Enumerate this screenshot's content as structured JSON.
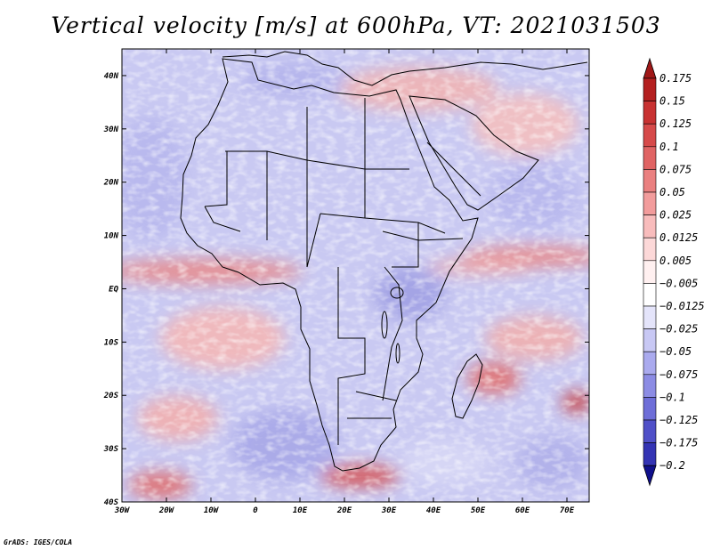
{
  "title": "Vertical velocity [m/s] at 600hPa, VT: 2021031503",
  "credit": "GrADS: IGES/COLA",
  "map": {
    "lon_range": [
      -30,
      75
    ],
    "lat_range": [
      -40,
      45
    ],
    "lon_ticks": [
      {
        "value": -30,
        "label": "30W"
      },
      {
        "value": -20,
        "label": "20W"
      },
      {
        "value": -10,
        "label": "10W"
      },
      {
        "value": 0,
        "label": "0"
      },
      {
        "value": 10,
        "label": "10E"
      },
      {
        "value": 20,
        "label": "20E"
      },
      {
        "value": 30,
        "label": "30E"
      },
      {
        "value": 40,
        "label": "40E"
      },
      {
        "value": 50,
        "label": "50E"
      },
      {
        "value": 60,
        "label": "60E"
      },
      {
        "value": 70,
        "label": "70E"
      }
    ],
    "lat_ticks": [
      {
        "value": 40,
        "label": "40N"
      },
      {
        "value": 30,
        "label": "30N"
      },
      {
        "value": 20,
        "label": "20N"
      },
      {
        "value": 10,
        "label": "10N"
      },
      {
        "value": 0,
        "label": "EQ"
      },
      {
        "value": -10,
        "label": "10S"
      },
      {
        "value": -20,
        "label": "20S"
      },
      {
        "value": -30,
        "label": "30S"
      },
      {
        "value": -40,
        "label": "40S"
      }
    ]
  },
  "colorbar": {
    "levels": [
      {
        "label": "0.175",
        "color": "#b42020"
      },
      {
        "label": "0.15",
        "color": "#c83232"
      },
      {
        "label": "0.125",
        "color": "#d64a4a"
      },
      {
        "label": "0.1",
        "color": "#e06464"
      },
      {
        "label": "0.075",
        "color": "#ea8080"
      },
      {
        "label": "0.05",
        "color": "#f29c9c"
      },
      {
        "label": "0.025",
        "color": "#f8bcbc"
      },
      {
        "label": "0.0125",
        "color": "#fcd8d8"
      },
      {
        "label": "0.005",
        "color": "#fff0f0"
      },
      {
        "label": "−0.005",
        "color": "#ffffff"
      },
      {
        "label": "−0.0125",
        "color": "#e4e4fa"
      },
      {
        "label": "−0.025",
        "color": "#c8c8f4"
      },
      {
        "label": "−0.05",
        "color": "#aaaaee"
      },
      {
        "label": "−0.075",
        "color": "#8c8ce4"
      },
      {
        "label": "−0.1",
        "color": "#6e6ed8"
      },
      {
        "label": "−0.125",
        "color": "#5050c8"
      },
      {
        "label": "−0.175",
        "color": "#3434b4"
      },
      {
        "label": "−0.2",
        "color": "#1c1ca0"
      }
    ],
    "top_color": "#a01818",
    "bottom_color": "#10108c"
  }
}
